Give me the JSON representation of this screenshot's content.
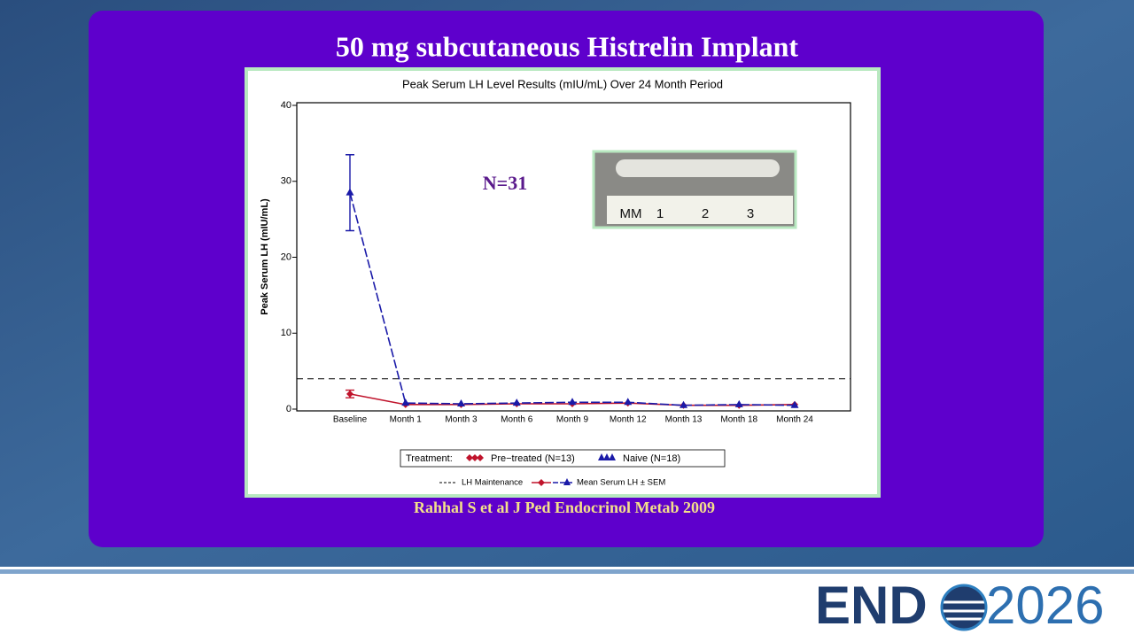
{
  "slide": {
    "title": "50 mg subcutaneous Histrelin Implant",
    "citation": "Rahhal S et al J Ped Endocrinol Metab 2009",
    "logo": {
      "left": "END",
      "right": "2026"
    }
  },
  "chart_data": {
    "type": "line",
    "title": "Peak Serum LH Level Results (mIU/mL) Over 24 Month Period",
    "y_label": "Peak Serum LH (mIU/mL)",
    "annotation": "N=31",
    "photo_labels": [
      "MM",
      "1",
      "2",
      "3"
    ],
    "categories": [
      "Baseline",
      "Month 1",
      "Month 3",
      "Month 6",
      "Month 9",
      "Month 12",
      "Month 13",
      "Month 18",
      "Month 24"
    ],
    "series": [
      {
        "name": "Pre−treated (N=13)",
        "color": "#c0142c",
        "marker": "diamond",
        "values": [
          2.0,
          0.6,
          0.6,
          0.7,
          0.7,
          0.8,
          0.5,
          0.5,
          0.6
        ],
        "errors": [
          0.5,
          null,
          null,
          null,
          null,
          null,
          null,
          null,
          null
        ]
      },
      {
        "name": "Naive (N=18)",
        "color": "#1a1aa8",
        "marker": "triangle",
        "values": [
          28.5,
          0.8,
          0.7,
          0.8,
          0.9,
          0.9,
          0.5,
          0.6,
          0.5
        ],
        "errors": [
          5.0,
          null,
          null,
          null,
          null,
          null,
          null,
          null,
          null
        ]
      }
    ],
    "legend_title": "Treatment:",
    "reference_line": {
      "value": 4,
      "label": "LH Maintenance"
    },
    "line_legend": "Mean Serum LH ± SEM",
    "ylim": [
      0,
      40
    ],
    "yticks": [
      0,
      10,
      20,
      30,
      40
    ],
    "grid": false
  }
}
